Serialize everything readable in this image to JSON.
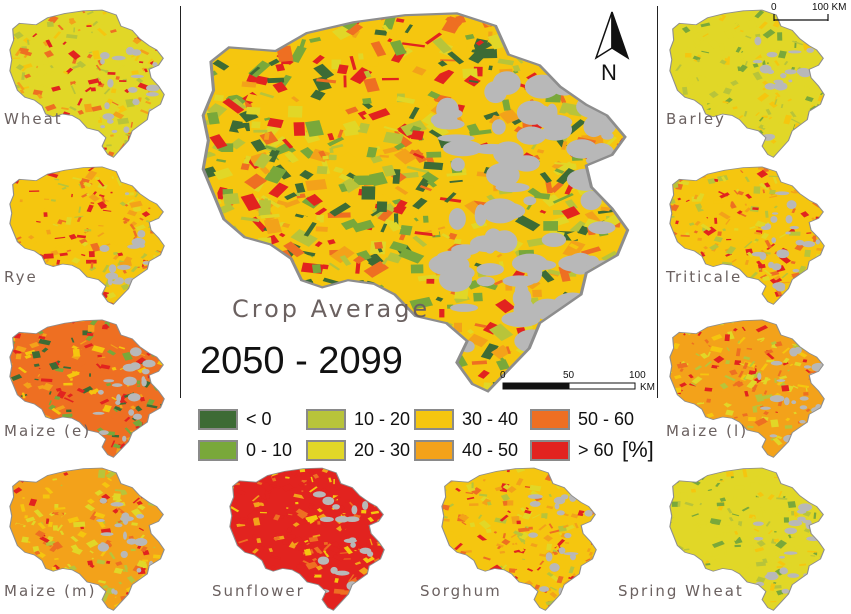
{
  "colors": {
    "lt0": "#3d6b35",
    "c0_10": "#79a83a",
    "c10_20": "#b8c43a",
    "c20_30": "#e1d727",
    "c30_40": "#f5c60f",
    "c40_50": "#f3a21a",
    "c50_60": "#ee6f22",
    "gt60": "#e2231f",
    "urban": "#b8b8b8",
    "outline": "#8d8d8d"
  },
  "main": {
    "title": "Crop Average",
    "period": "2050 - 2099",
    "north_label": "N",
    "scale": {
      "ticks": [
        "0",
        "50",
        "100"
      ],
      "unit": "KM"
    }
  },
  "top_scale": {
    "ticks": [
      "0",
      "100 KM"
    ]
  },
  "legend": {
    "unit": "[%]",
    "items": [
      {
        "label": "< 0",
        "color": "#3d6b35"
      },
      {
        "label": "0 - 10",
        "color": "#79a83a"
      },
      {
        "label": "10 - 20",
        "color": "#b8c43a"
      },
      {
        "label": "20 - 30",
        "color": "#e1d727"
      },
      {
        "label": "30 - 40",
        "color": "#f5c60f"
      },
      {
        "label": "40 - 50",
        "color": "#f3a21a"
      },
      {
        "label": "50 - 60",
        "color": "#ee6f22"
      },
      {
        "label": "> 60",
        "color": "#e2231f"
      }
    ]
  },
  "crops": [
    {
      "name": "Wheat",
      "palette": [
        "#e1d727",
        "#f5c60f",
        "#f3a21a",
        "#ee6f22",
        "#e2231f",
        "#b8c43a"
      ]
    },
    {
      "name": "Rye",
      "palette": [
        "#f5c60f",
        "#f3a21a",
        "#ee6f22",
        "#e2231f",
        "#e1d727",
        "#b8c43a"
      ]
    },
    {
      "name": "Maize (e)",
      "palette": [
        "#ee6f22",
        "#f3a21a",
        "#e2231f",
        "#79a83a",
        "#f5c60f",
        "#3d6b35"
      ]
    },
    {
      "name": "Maize (m)",
      "palette": [
        "#f3a21a",
        "#ee6f22",
        "#e2231f",
        "#f5c60f",
        "#e1d727",
        "#b8c43a"
      ]
    },
    {
      "name": "Sunflower",
      "palette": [
        "#e2231f",
        "#ee6f22",
        "#e2231f",
        "#f3a21a",
        "#e2231f",
        "#f5c60f"
      ]
    },
    {
      "name": "Sorghum",
      "palette": [
        "#f5c60f",
        "#e1d727",
        "#f3a21a",
        "#ee6f22",
        "#e2231f",
        "#b8c43a"
      ]
    },
    {
      "name": "Spring Wheat",
      "palette": [
        "#e1d727",
        "#b8c43a",
        "#e1d727",
        "#f5c60f",
        "#79a83a",
        "#e1d727"
      ]
    },
    {
      "name": "Maize (l)",
      "palette": [
        "#f3a21a",
        "#ee6f22",
        "#e2231f",
        "#f5c60f",
        "#e1d727",
        "#b8c43a"
      ]
    },
    {
      "name": "Triticale",
      "palette": [
        "#f5c60f",
        "#f3a21a",
        "#ee6f22",
        "#e2231f",
        "#e1d727",
        "#b8c43a"
      ]
    },
    {
      "name": "Barley",
      "palette": [
        "#e1d727",
        "#b8c43a",
        "#e1d727",
        "#f5c60f",
        "#79a83a",
        "#e1d727"
      ]
    }
  ],
  "main_palette": [
    "#f5c60f",
    "#e1d727",
    "#f3a21a",
    "#ee6f22",
    "#e2231f",
    "#b8c43a",
    "#79a83a",
    "#3d6b35"
  ]
}
